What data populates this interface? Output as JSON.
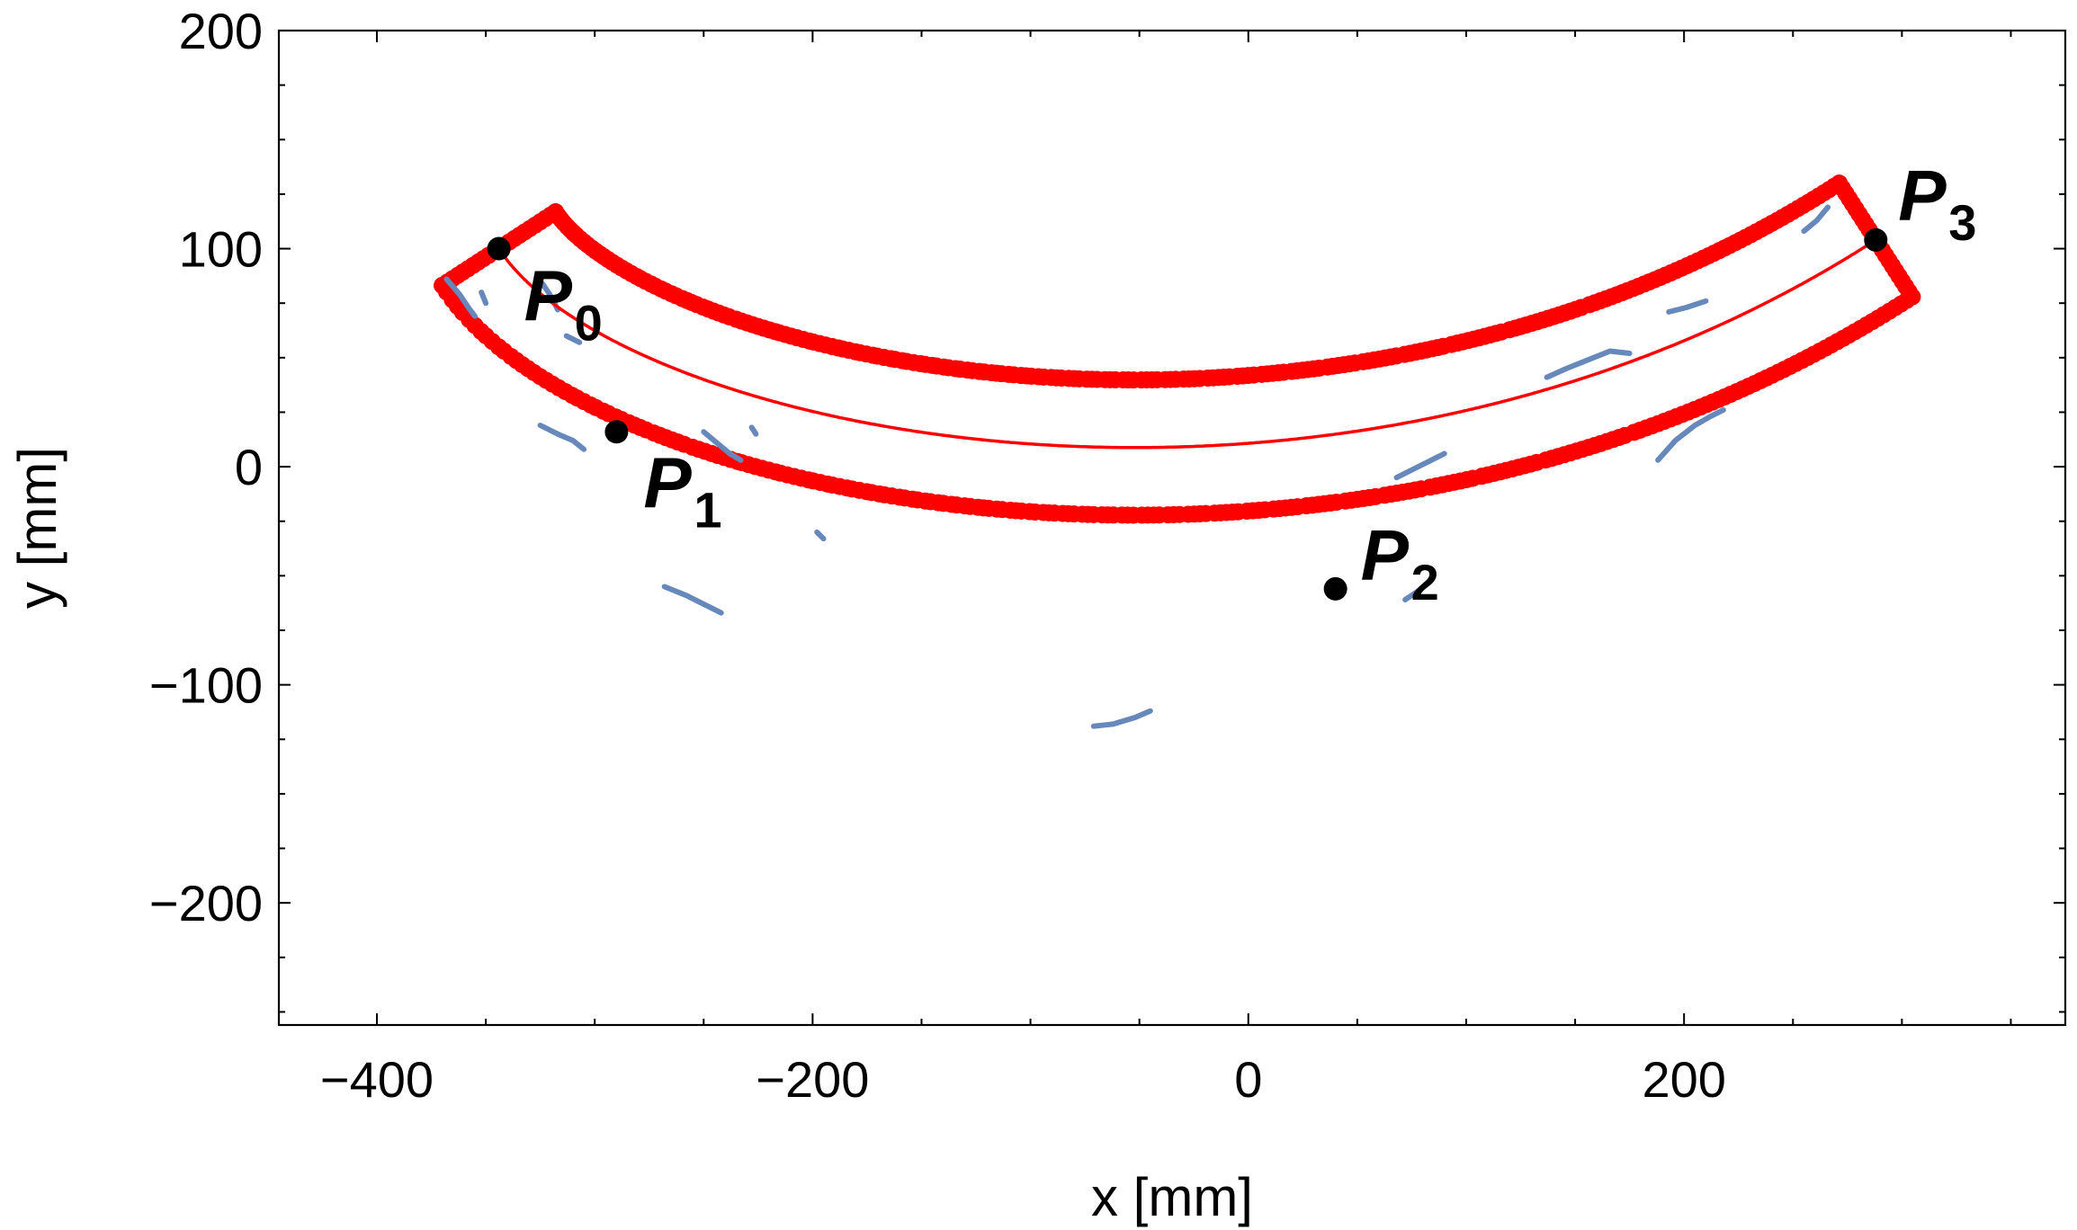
{
  "chart_data": {
    "type": "scatter",
    "title": "",
    "xlabel": "x [mm]",
    "ylabel": "y [mm]",
    "xlim": [
      -445,
      375
    ],
    "ylim": [
      -256,
      200
    ],
    "x_ticks": [
      -400,
      -200,
      0,
      200
    ],
    "x_tick_labels": [
      "−400",
      "−200",
      "0",
      "200"
    ],
    "y_ticks": [
      -200,
      -100,
      0,
      100,
      200
    ],
    "y_tick_labels": [
      "−200",
      "−100",
      "0",
      "100",
      "200"
    ],
    "x_minor_step": 50,
    "y_minor_step": 25,
    "grid": false,
    "colors": {
      "tube": "#ff0000",
      "centerline": "#ff0000",
      "trajectory": "#6688bb",
      "control_point": "#000000"
    },
    "tube_half_width": 31,
    "control_points": [
      {
        "name": "P",
        "sub": "0",
        "x": -344,
        "y": 100
      },
      {
        "name": "P",
        "sub": "1",
        "x": -290,
        "y": 16
      },
      {
        "name": "P",
        "sub": "2",
        "x": 40,
        "y": -56
      },
      {
        "name": "P",
        "sub": "3",
        "x": 288,
        "y": 104
      }
    ],
    "series": [
      {
        "name": "tube walls",
        "kind": "thick-dotted-boundary"
      },
      {
        "name": "centerline",
        "kind": "bezier-curve"
      },
      {
        "name": "trajectories",
        "kind": "scatter-fragments",
        "segments": [
          [
            [
              -368,
              86
            ],
            [
              -362,
              79
            ],
            [
              -358,
              73
            ],
            [
              -355,
              69
            ]
          ],
          [
            [
              -324,
              84
            ],
            [
              -320,
              78
            ],
            [
              -317,
              72
            ]
          ],
          [
            [
              -325,
              19
            ],
            [
              -317,
              15
            ],
            [
              -310,
              12
            ],
            [
              -305,
              8
            ]
          ],
          [
            [
              -250,
              16
            ],
            [
              -244,
              11
            ],
            [
              -238,
              6
            ],
            [
              -233,
              3
            ]
          ],
          [
            [
              -268,
              -55
            ],
            [
              -258,
              -59
            ],
            [
              -250,
              -63
            ],
            [
              -242,
              -67
            ]
          ],
          [
            [
              -198,
              -30
            ],
            [
              -195,
              -33
            ]
          ],
          [
            [
              -352,
              80
            ],
            [
              -350,
              75
            ]
          ],
          [
            [
              -71,
              -119
            ],
            [
              -62,
              -118
            ],
            [
              -52,
              -115
            ],
            [
              -45,
              -112
            ]
          ],
          [
            [
              68,
              -5
            ],
            [
              76,
              -1
            ],
            [
              84,
              3
            ],
            [
              90,
              6
            ]
          ],
          [
            [
              72,
              -61
            ],
            [
              78,
              -57
            ],
            [
              84,
              -52
            ]
          ],
          [
            [
              137,
              41
            ],
            [
              146,
              45
            ],
            [
              156,
              49
            ],
            [
              166,
              53
            ],
            [
              175,
              52
            ]
          ],
          [
            [
              188,
              3
            ],
            [
              196,
              12
            ],
            [
              205,
              19
            ],
            [
              212,
              23
            ],
            [
              218,
              26
            ]
          ],
          [
            [
              193,
              71
            ],
            [
              201,
              73
            ],
            [
              210,
              76
            ]
          ],
          [
            [
              255,
              108
            ],
            [
              261,
              113
            ],
            [
              266,
              119
            ]
          ],
          [
            [
              -313,
              60
            ],
            [
              -307,
              57
            ]
          ],
          [
            [
              -228,
              18
            ],
            [
              -226,
              15
            ]
          ]
        ]
      }
    ]
  }
}
